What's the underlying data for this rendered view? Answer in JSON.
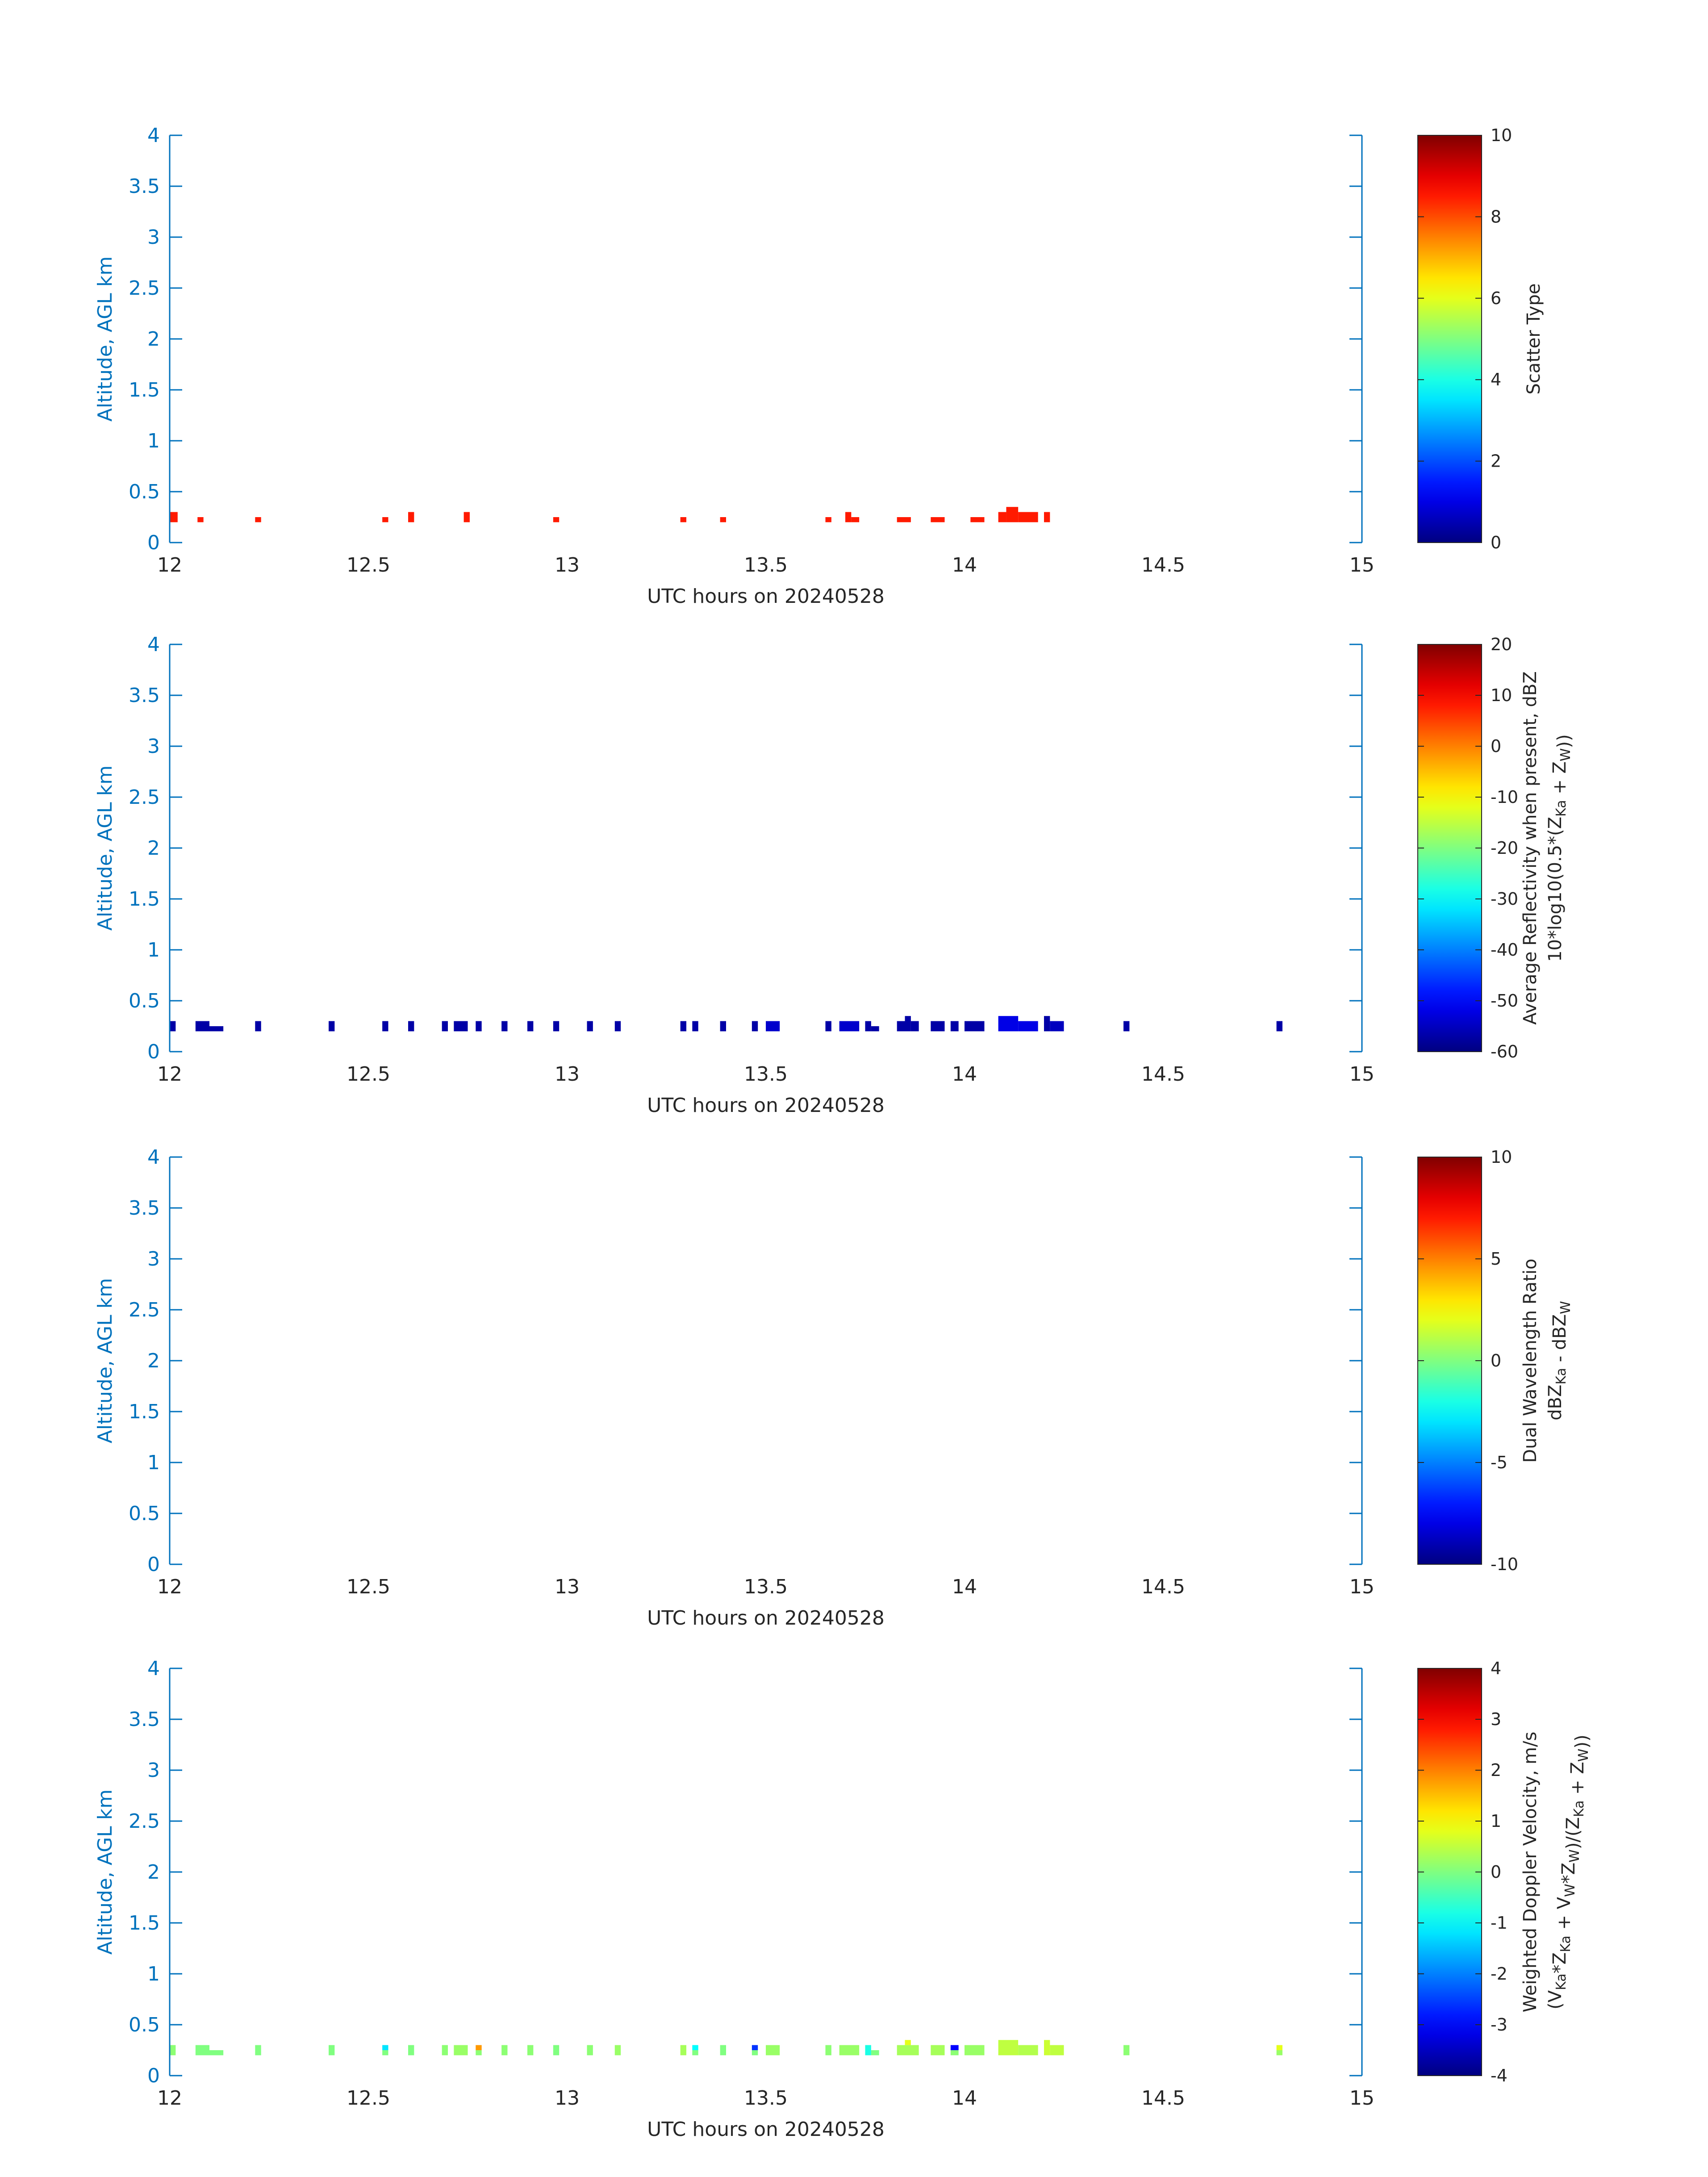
{
  "colors": {
    "axis": "#0072bd",
    "text": "#262626",
    "cbar_edge": "#262626"
  },
  "chart_data": [
    {
      "type": "heatmap",
      "xlabel": "UTC hours on 20240528",
      "ylabel": "Altitude, AGL km",
      "xlim": [
        12,
        15
      ],
      "ylim": [
        0,
        4
      ],
      "xticks": [
        "12",
        "12.5",
        "13",
        "13.5",
        "14",
        "14.5",
        "15"
      ],
      "yticks": [
        "0",
        "0.5",
        "1",
        "1.5",
        "2",
        "2.5",
        "3",
        "3.5",
        "4"
      ],
      "colorbar": {
        "label": [
          "Scatter Type"
        ],
        "range": [
          0,
          10
        ],
        "ticks": [
          "0",
          "2",
          "4",
          "6",
          "8",
          "10"
        ],
        "colormap": "jet"
      },
      "cells": [
        {
          "t0": 12.0,
          "t1": 12.02,
          "z0": 0.2,
          "z1": 0.3,
          "v": 8.5
        },
        {
          "t0": 12.07,
          "t1": 12.085,
          "z0": 0.2,
          "z1": 0.25,
          "v": 8.5
        },
        {
          "t0": 12.215,
          "t1": 12.23,
          "z0": 0.2,
          "z1": 0.25,
          "v": 8.5
        },
        {
          "t0": 12.535,
          "t1": 12.55,
          "z0": 0.2,
          "z1": 0.25,
          "v": 8.5
        },
        {
          "t0": 12.6,
          "t1": 12.615,
          "z0": 0.2,
          "z1": 0.3,
          "v": 8.5
        },
        {
          "t0": 12.74,
          "t1": 12.755,
          "z0": 0.2,
          "z1": 0.3,
          "v": 8.5
        },
        {
          "t0": 12.965,
          "t1": 12.98,
          "z0": 0.2,
          "z1": 0.25,
          "v": 8.5
        },
        {
          "t0": 13.285,
          "t1": 13.3,
          "z0": 0.2,
          "z1": 0.25,
          "v": 8.5
        },
        {
          "t0": 13.385,
          "t1": 13.4,
          "z0": 0.2,
          "z1": 0.25,
          "v": 8.5
        },
        {
          "t0": 13.65,
          "t1": 13.665,
          "z0": 0.2,
          "z1": 0.25,
          "v": 8.5
        },
        {
          "t0": 13.7,
          "t1": 13.715,
          "z0": 0.2,
          "z1": 0.3,
          "v": 8.5
        },
        {
          "t0": 13.715,
          "t1": 13.735,
          "z0": 0.2,
          "z1": 0.25,
          "v": 8.5
        },
        {
          "t0": 13.83,
          "t1": 13.865,
          "z0": 0.2,
          "z1": 0.25,
          "v": 8.5
        },
        {
          "t0": 13.915,
          "t1": 13.95,
          "z0": 0.2,
          "z1": 0.25,
          "v": 8.5
        },
        {
          "t0": 14.015,
          "t1": 14.05,
          "z0": 0.2,
          "z1": 0.25,
          "v": 8.5
        },
        {
          "t0": 14.085,
          "t1": 14.105,
          "z0": 0.2,
          "z1": 0.3,
          "v": 8.5
        },
        {
          "t0": 14.105,
          "t1": 14.135,
          "z0": 0.2,
          "z1": 0.35,
          "v": 8.5
        },
        {
          "t0": 14.135,
          "t1": 14.185,
          "z0": 0.2,
          "z1": 0.3,
          "v": 8.5
        },
        {
          "t0": 14.2,
          "t1": 14.215,
          "z0": 0.2,
          "z1": 0.3,
          "v": 8.5
        }
      ]
    },
    {
      "type": "heatmap",
      "xlabel": "UTC hours on 20240528",
      "ylabel": "Altitude, AGL km",
      "xlim": [
        12,
        15
      ],
      "ylim": [
        0,
        4
      ],
      "xticks": [
        "12",
        "12.5",
        "13",
        "13.5",
        "14",
        "14.5",
        "15"
      ],
      "yticks": [
        "0",
        "0.5",
        "1",
        "1.5",
        "2",
        "2.5",
        "3",
        "3.5",
        "4"
      ],
      "colorbar": {
        "label": [
          "Average Reflectivity when present, dBZ",
          "10*log10(0.5*(Z_Ka + Z_W))"
        ],
        "range": [
          -60,
          20
        ],
        "ticks": [
          "-60",
          "-50",
          "-40",
          "-30",
          "-20",
          "-10",
          "0",
          "10",
          "20"
        ],
        "colormap": "jet"
      },
      "cells": [
        {
          "t0": 12.0,
          "t1": 12.015,
          "z0": 0.2,
          "z1": 0.3,
          "v": -57
        },
        {
          "t0": 12.065,
          "t1": 12.1,
          "z0": 0.2,
          "z1": 0.3,
          "v": -57
        },
        {
          "t0": 12.1,
          "t1": 12.135,
          "z0": 0.2,
          "z1": 0.25,
          "v": -57
        },
        {
          "t0": 12.215,
          "t1": 12.23,
          "z0": 0.2,
          "z1": 0.3,
          "v": -57
        },
        {
          "t0": 12.4,
          "t1": 12.415,
          "z0": 0.2,
          "z1": 0.3,
          "v": -57
        },
        {
          "t0": 12.535,
          "t1": 12.55,
          "z0": 0.2,
          "z1": 0.3,
          "v": -57
        },
        {
          "t0": 12.6,
          "t1": 12.615,
          "z0": 0.2,
          "z1": 0.3,
          "v": -57
        },
        {
          "t0": 12.685,
          "t1": 12.7,
          "z0": 0.2,
          "z1": 0.3,
          "v": -57
        },
        {
          "t0": 12.715,
          "t1": 12.75,
          "z0": 0.2,
          "z1": 0.3,
          "v": -57
        },
        {
          "t0": 12.77,
          "t1": 12.785,
          "z0": 0.2,
          "z1": 0.3,
          "v": -57
        },
        {
          "t0": 12.835,
          "t1": 12.85,
          "z0": 0.2,
          "z1": 0.3,
          "v": -57
        },
        {
          "t0": 12.9,
          "t1": 12.915,
          "z0": 0.2,
          "z1": 0.3,
          "v": -57
        },
        {
          "t0": 12.965,
          "t1": 12.98,
          "z0": 0.2,
          "z1": 0.3,
          "v": -57
        },
        {
          "t0": 13.05,
          "t1": 13.065,
          "z0": 0.2,
          "z1": 0.3,
          "v": -57
        },
        {
          "t0": 13.12,
          "t1": 13.135,
          "z0": 0.2,
          "z1": 0.3,
          "v": -57
        },
        {
          "t0": 13.285,
          "t1": 13.3,
          "z0": 0.2,
          "z1": 0.3,
          "v": -57
        },
        {
          "t0": 13.315,
          "t1": 13.33,
          "z0": 0.2,
          "z1": 0.3,
          "v": -57
        },
        {
          "t0": 13.385,
          "t1": 13.4,
          "z0": 0.2,
          "z1": 0.3,
          "v": -57
        },
        {
          "t0": 13.465,
          "t1": 13.48,
          "z0": 0.2,
          "z1": 0.3,
          "v": -57
        },
        {
          "t0": 13.5,
          "t1": 13.535,
          "z0": 0.2,
          "z1": 0.3,
          "v": -54
        },
        {
          "t0": 13.65,
          "t1": 13.665,
          "z0": 0.2,
          "z1": 0.3,
          "v": -57
        },
        {
          "t0": 13.685,
          "t1": 13.735,
          "z0": 0.2,
          "z1": 0.3,
          "v": -54
        },
        {
          "t0": 13.75,
          "t1": 13.765,
          "z0": 0.2,
          "z1": 0.3,
          "v": -57
        },
        {
          "t0": 13.765,
          "t1": 13.785,
          "z0": 0.2,
          "z1": 0.25,
          "v": -57
        },
        {
          "t0": 13.83,
          "t1": 13.85,
          "z0": 0.2,
          "z1": 0.3,
          "v": -57
        },
        {
          "t0": 13.85,
          "t1": 13.865,
          "z0": 0.2,
          "z1": 0.35,
          "v": -57
        },
        {
          "t0": 13.865,
          "t1": 13.885,
          "z0": 0.2,
          "z1": 0.3,
          "v": -57
        },
        {
          "t0": 13.915,
          "t1": 13.95,
          "z0": 0.2,
          "z1": 0.3,
          "v": -57
        },
        {
          "t0": 13.965,
          "t1": 13.985,
          "z0": 0.2,
          "z1": 0.3,
          "v": -57
        },
        {
          "t0": 14.0,
          "t1": 14.05,
          "z0": 0.2,
          "z1": 0.3,
          "v": -57
        },
        {
          "t0": 14.085,
          "t1": 14.135,
          "z0": 0.2,
          "z1": 0.35,
          "v": -52
        },
        {
          "t0": 14.135,
          "t1": 14.185,
          "z0": 0.2,
          "z1": 0.3,
          "v": -52
        },
        {
          "t0": 14.2,
          "t1": 14.215,
          "z0": 0.2,
          "z1": 0.35,
          "v": -57
        },
        {
          "t0": 14.215,
          "t1": 14.25,
          "z0": 0.2,
          "z1": 0.3,
          "v": -55
        },
        {
          "t0": 14.4,
          "t1": 14.415,
          "z0": 0.2,
          "z1": 0.3,
          "v": -57
        },
        {
          "t0": 14.785,
          "t1": 14.8,
          "z0": 0.2,
          "z1": 0.3,
          "v": -57
        }
      ]
    },
    {
      "type": "heatmap",
      "xlabel": "UTC hours on 20240528",
      "ylabel": "Altitude, AGL km",
      "xlim": [
        12,
        15
      ],
      "ylim": [
        0,
        4
      ],
      "xticks": [
        "12",
        "12.5",
        "13",
        "13.5",
        "14",
        "14.5",
        "15"
      ],
      "yticks": [
        "0",
        "0.5",
        "1",
        "1.5",
        "2",
        "2.5",
        "3",
        "3.5",
        "4"
      ],
      "colorbar": {
        "label": [
          "Dual Wavelength Ratio",
          "dBZ_Ka - dBZ_W"
        ],
        "range": [
          -10,
          10
        ],
        "ticks": [
          "-10",
          "-5",
          "0",
          "5",
          "10"
        ],
        "colormap": "jet"
      },
      "cells": []
    },
    {
      "type": "heatmap",
      "xlabel": "UTC hours on 20240528",
      "ylabel": "Altitude, AGL km",
      "xlim": [
        12,
        15
      ],
      "ylim": [
        0,
        4
      ],
      "xticks": [
        "12",
        "12.5",
        "13",
        "13.5",
        "14",
        "14.5",
        "15"
      ],
      "yticks": [
        "0",
        "0.5",
        "1",
        "1.5",
        "2",
        "2.5",
        "3",
        "3.5",
        "4"
      ],
      "colorbar": {
        "label": [
          "Weighted Doppler Velocity, m/s",
          "(V_Ka*Z_Ka + V_W*Z_W)/(Z_Ka + Z_W))"
        ],
        "range": [
          -4,
          4
        ],
        "ticks": [
          "-4",
          "-3",
          "-2",
          "-1",
          "0",
          "1",
          "2",
          "3",
          "4"
        ],
        "colormap": "jet"
      },
      "cells": [
        {
          "t0": 12.0,
          "t1": 12.015,
          "z0": 0.2,
          "z1": 0.3,
          "v": 0.1
        },
        {
          "t0": 12.065,
          "t1": 12.1,
          "z0": 0.2,
          "z1": 0.3,
          "v": 0.0
        },
        {
          "t0": 12.1,
          "t1": 12.135,
          "z0": 0.2,
          "z1": 0.25,
          "v": 0.0
        },
        {
          "t0": 12.215,
          "t1": 12.23,
          "z0": 0.2,
          "z1": 0.3,
          "v": 0.0
        },
        {
          "t0": 12.4,
          "t1": 12.415,
          "z0": 0.2,
          "z1": 0.3,
          "v": 0.0
        },
        {
          "t0": 12.535,
          "t1": 12.55,
          "z0": 0.25,
          "z1": 0.3,
          "v": -1.2
        },
        {
          "t0": 12.535,
          "t1": 12.55,
          "z0": 0.2,
          "z1": 0.25,
          "v": 0.0
        },
        {
          "t0": 12.6,
          "t1": 12.615,
          "z0": 0.2,
          "z1": 0.3,
          "v": 0.0
        },
        {
          "t0": 12.685,
          "t1": 12.7,
          "z0": 0.2,
          "z1": 0.3,
          "v": 0.1
        },
        {
          "t0": 12.715,
          "t1": 12.75,
          "z0": 0.2,
          "z1": 0.3,
          "v": 0.2
        },
        {
          "t0": 12.77,
          "t1": 12.785,
          "z0": 0.25,
          "z1": 0.3,
          "v": 1.8
        },
        {
          "t0": 12.77,
          "t1": 12.785,
          "z0": 0.2,
          "z1": 0.25,
          "v": 0.1
        },
        {
          "t0": 12.835,
          "t1": 12.85,
          "z0": 0.2,
          "z1": 0.3,
          "v": 0.1
        },
        {
          "t0": 12.9,
          "t1": 12.915,
          "z0": 0.2,
          "z1": 0.3,
          "v": 0.1
        },
        {
          "t0": 12.965,
          "t1": 12.98,
          "z0": 0.2,
          "z1": 0.3,
          "v": 0.0
        },
        {
          "t0": 13.05,
          "t1": 13.065,
          "z0": 0.2,
          "z1": 0.3,
          "v": 0.1
        },
        {
          "t0": 13.12,
          "t1": 13.135,
          "z0": 0.2,
          "z1": 0.3,
          "v": 0.2
        },
        {
          "t0": 13.285,
          "t1": 13.3,
          "z0": 0.2,
          "z1": 0.3,
          "v": 0.3
        },
        {
          "t0": 13.315,
          "t1": 13.33,
          "z0": 0.25,
          "z1": 0.3,
          "v": -1.0
        },
        {
          "t0": 13.315,
          "t1": 13.33,
          "z0": 0.2,
          "z1": 0.25,
          "v": 0.0
        },
        {
          "t0": 13.385,
          "t1": 13.4,
          "z0": 0.2,
          "z1": 0.3,
          "v": 0.0
        },
        {
          "t0": 13.465,
          "t1": 13.48,
          "z0": 0.25,
          "z1": 0.3,
          "v": -2.6
        },
        {
          "t0": 13.465,
          "t1": 13.48,
          "z0": 0.2,
          "z1": 0.25,
          "v": 0.0
        },
        {
          "t0": 13.5,
          "t1": 13.535,
          "z0": 0.2,
          "z1": 0.3,
          "v": 0.2
        },
        {
          "t0": 13.65,
          "t1": 13.665,
          "z0": 0.2,
          "z1": 0.3,
          "v": 0.1
        },
        {
          "t0": 13.685,
          "t1": 13.735,
          "z0": 0.2,
          "z1": 0.3,
          "v": 0.2
        },
        {
          "t0": 13.75,
          "t1": 13.765,
          "z0": 0.2,
          "z1": 0.3,
          "v": -0.8
        },
        {
          "t0": 13.765,
          "t1": 13.785,
          "z0": 0.2,
          "z1": 0.25,
          "v": 0.0
        },
        {
          "t0": 13.83,
          "t1": 13.885,
          "z0": 0.2,
          "z1": 0.3,
          "v": 0.3
        },
        {
          "t0": 13.85,
          "t1": 13.865,
          "z0": 0.3,
          "z1": 0.35,
          "v": 0.8
        },
        {
          "t0": 13.915,
          "t1": 13.95,
          "z0": 0.2,
          "z1": 0.3,
          "v": 0.3
        },
        {
          "t0": 13.965,
          "t1": 13.985,
          "z0": 0.25,
          "z1": 0.3,
          "v": -3.0
        },
        {
          "t0": 13.965,
          "t1": 13.985,
          "z0": 0.2,
          "z1": 0.25,
          "v": 0.1
        },
        {
          "t0": 14.0,
          "t1": 14.05,
          "z0": 0.2,
          "z1": 0.3,
          "v": 0.2
        },
        {
          "t0": 14.085,
          "t1": 14.135,
          "z0": 0.2,
          "z1": 0.35,
          "v": 0.5
        },
        {
          "t0": 14.135,
          "t1": 14.185,
          "z0": 0.2,
          "z1": 0.3,
          "v": 0.4
        },
        {
          "t0": 14.2,
          "t1": 14.215,
          "z0": 0.2,
          "z1": 0.35,
          "v": 0.6
        },
        {
          "t0": 14.215,
          "t1": 14.25,
          "z0": 0.2,
          "z1": 0.3,
          "v": 0.5
        },
        {
          "t0": 14.4,
          "t1": 14.415,
          "z0": 0.2,
          "z1": 0.3,
          "v": 0.1
        },
        {
          "t0": 14.785,
          "t1": 14.8,
          "z0": 0.25,
          "z1": 0.3,
          "v": 0.8
        },
        {
          "t0": 14.785,
          "t1": 14.8,
          "z0": 0.2,
          "z1": 0.25,
          "v": 0.2
        }
      ]
    }
  ]
}
